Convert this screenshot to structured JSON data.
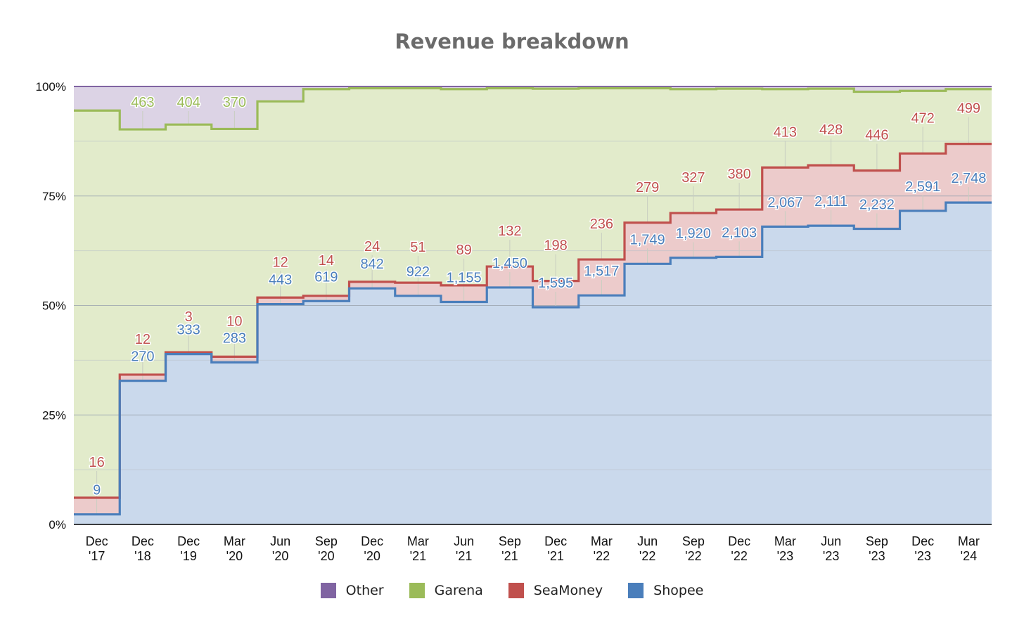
{
  "chart_data": {
    "type": "area",
    "title": "Revenue breakdown",
    "stacking": "percent",
    "step": true,
    "xlabel": "",
    "ylabel": "",
    "y_ticks": [
      "0%",
      "25%",
      "50%",
      "75%",
      "100%"
    ],
    "minor_gridlines": true,
    "legend_position": "bottom",
    "categories": [
      [
        "Dec",
        "'17"
      ],
      [
        "Dec",
        "'18"
      ],
      [
        "Dec",
        "'19"
      ],
      [
        "Mar",
        "'20"
      ],
      [
        "Jun",
        "'20"
      ],
      [
        "Sep",
        "'20"
      ],
      [
        "Dec",
        "'20"
      ],
      [
        "Mar",
        "'21"
      ],
      [
        "Jun",
        "'21"
      ],
      [
        "Sep",
        "'21"
      ],
      [
        "Dec",
        "'21"
      ],
      [
        "Mar",
        "'22"
      ],
      [
        "Jun",
        "'22"
      ],
      [
        "Sep",
        "'22"
      ],
      [
        "Dec",
        "'22"
      ],
      [
        "Mar",
        "'23"
      ],
      [
        "Jun",
        "'23"
      ],
      [
        "Sep",
        "'23"
      ],
      [
        "Dec",
        "'23"
      ],
      [
        "Mar",
        "'24"
      ]
    ],
    "series": [
      {
        "name": "Shopee",
        "color": "#4a7ebb",
        "fill": "#cad9ec",
        "values": [
          9,
          270,
          333,
          283,
          443,
          619,
          842,
          922,
          1155,
          1450,
          1595,
          1517,
          1749,
          1920,
          2103,
          2067,
          2111,
          2232,
          2591,
          2748
        ],
        "labels": [
          "9",
          "270",
          "333",
          "283",
          "443",
          "619",
          "842",
          "922",
          "1,155",
          "1,450",
          "1,595",
          "1,517",
          "1,749",
          "1,920",
          "2,103",
          "2,067",
          "2,111",
          "2,232",
          "2,591",
          "2,748"
        ],
        "share_pct": [
          2.3,
          32.8,
          38.9,
          37.0,
          50.3,
          51.0,
          53.9,
          52.2,
          50.8,
          54.1,
          49.6,
          52.3,
          59.5,
          60.9,
          61.1,
          68.0,
          68.2,
          67.5,
          71.6,
          73.5
        ]
      },
      {
        "name": "SeaMoney",
        "color": "#c0504d",
        "fill": "#eccbcb",
        "values": [
          16,
          12,
          3,
          10,
          12,
          14,
          24,
          51,
          89,
          132,
          198,
          236,
          279,
          327,
          380,
          413,
          428,
          446,
          472,
          499
        ],
        "labels": [
          "16",
          "12",
          "3",
          "10",
          "12",
          "14",
          "24",
          "51",
          "89",
          "132",
          "198",
          "236",
          "279",
          "327",
          "380",
          "413",
          "428",
          "446",
          "472",
          "499"
        ],
        "share_pct": [
          3.8,
          1.4,
          0.4,
          1.3,
          1.5,
          1.2,
          1.5,
          3.0,
          3.8,
          4.8,
          6.0,
          8.2,
          9.4,
          10.2,
          10.8,
          13.5,
          13.8,
          13.3,
          13.1,
          13.4
        ]
      },
      {
        "name": "Garena",
        "color": "#9bbb59",
        "fill": "#e2ebcb",
        "values": [
          null,
          463,
          404,
          370,
          null,
          null,
          null,
          null,
          null,
          null,
          null,
          null,
          null,
          null,
          null,
          null,
          null,
          null,
          null,
          null
        ],
        "labels": [
          "",
          "463",
          "404",
          "370",
          "",
          "",
          "",
          "",
          "",
          "",
          "",
          "",
          "",
          "",
          "",
          "",
          "",
          "",
          "",
          ""
        ],
        "share_pct": [
          88.4,
          56.0,
          52.0,
          52.0,
          44.8,
          47.2,
          44.2,
          44.4,
          44.8,
          40.7,
          43.9,
          39.1,
          30.7,
          28.3,
          27.6,
          17.9,
          17.5,
          18.0,
          14.3,
          12.5
        ]
      },
      {
        "name": "Other",
        "color": "#8064a2",
        "fill": "#dcd3e5",
        "values": [
          null,
          null,
          null,
          null,
          null,
          null,
          null,
          null,
          null,
          null,
          null,
          null,
          null,
          null,
          null,
          null,
          null,
          null,
          null,
          null
        ],
        "labels": [
          "",
          "",
          "",
          "",
          "",
          "",
          "",
          "",
          "",
          "",
          "",
          "",
          "",
          "",
          "",
          "",
          "",
          "",
          "",
          ""
        ],
        "share_pct": [
          5.5,
          9.8,
          8.7,
          9.7,
          3.4,
          0.6,
          0.4,
          0.4,
          0.6,
          0.4,
          0.5,
          0.4,
          0.4,
          0.6,
          0.5,
          0.6,
          0.5,
          1.2,
          1.0,
          0.6
        ]
      }
    ]
  }
}
